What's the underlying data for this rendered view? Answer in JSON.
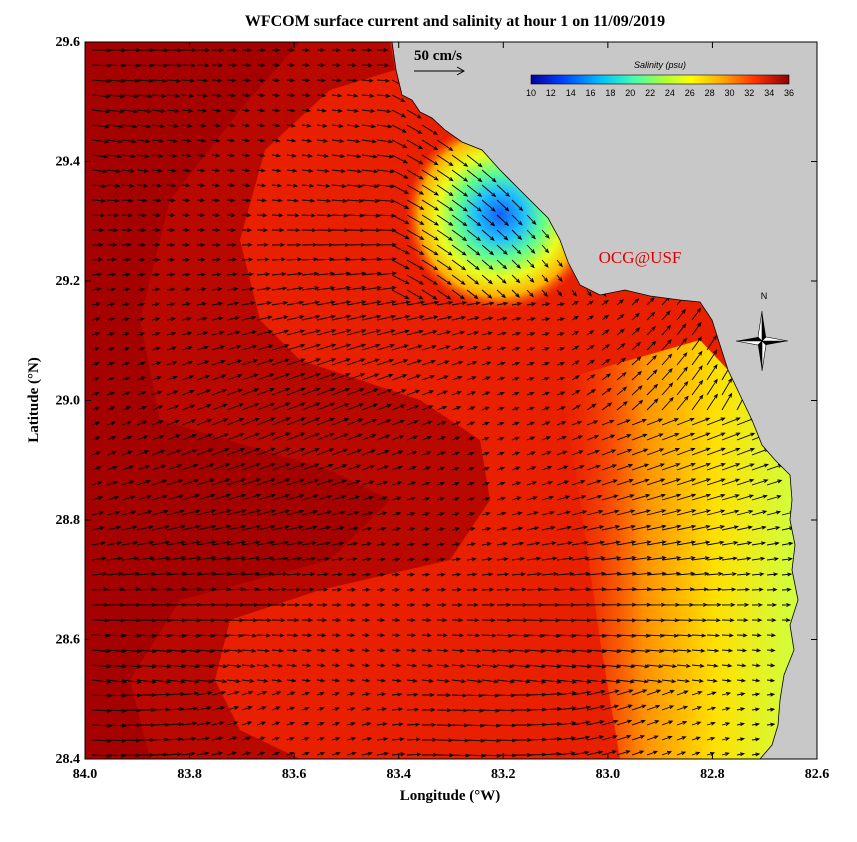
{
  "title": "WFCOM surface current and salinity at hour 1 on 11/09/2019",
  "x_axis": {
    "label": "Longitude (°W)",
    "range": [
      84.0,
      82.6
    ],
    "ticks": [
      "84.0",
      "83.8",
      "83.6",
      "83.4",
      "83.2",
      "83.0",
      "82.8",
      "82.6"
    ]
  },
  "y_axis": {
    "label": "Latitude (°N)",
    "range": [
      28.4,
      29.6
    ],
    "ticks": [
      "28.4",
      "28.6",
      "28.8",
      "29.0",
      "29.2",
      "29.4",
      "29.6"
    ]
  },
  "vector_scale": {
    "label": "50 cm/s",
    "value_cm_s": 50
  },
  "colorbar": {
    "title": "Salinity (psu)",
    "ticks": [
      "10",
      "12",
      "14",
      "16",
      "18",
      "20",
      "22",
      "24",
      "26",
      "28",
      "30",
      "32",
      "34",
      "36"
    ],
    "range": [
      10,
      36
    ]
  },
  "credit": "OCG@USF",
  "compass": {
    "label": "N"
  },
  "colors": {
    "land": "#c8c8c8",
    "ocean_high_salinity": "#b00000",
    "ocean_mid_salinity": "#ff2a00",
    "low_salinity_plume": "#0060ff",
    "credit_text": "#e00000"
  }
}
